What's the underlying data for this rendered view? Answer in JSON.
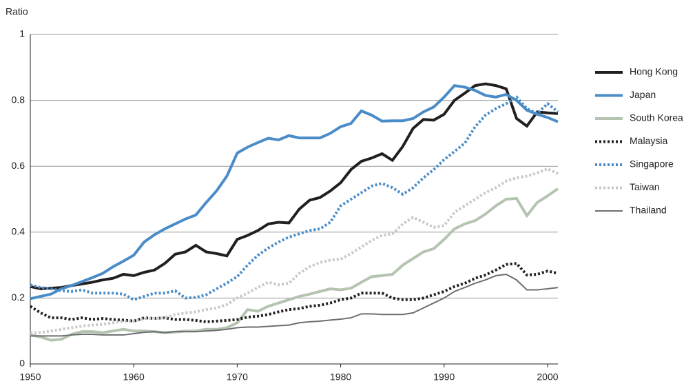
{
  "chart_data": {
    "type": "line",
    "y_label": "Ratio",
    "x": [
      1950,
      1951,
      1952,
      1953,
      1954,
      1955,
      1956,
      1957,
      1958,
      1959,
      1960,
      1961,
      1962,
      1963,
      1964,
      1965,
      1966,
      1967,
      1968,
      1969,
      1970,
      1971,
      1972,
      1973,
      1974,
      1975,
      1976,
      1977,
      1978,
      1979,
      1980,
      1981,
      1982,
      1983,
      1984,
      1985,
      1986,
      1987,
      1988,
      1989,
      1990,
      1991,
      1992,
      1993,
      1994,
      1995,
      1996,
      1997,
      1998,
      1999,
      2000,
      2001
    ],
    "xlim": [
      1950,
      2001
    ],
    "xticks": [
      1950,
      1960,
      1970,
      1980,
      1990,
      2000
    ],
    "ylim": [
      0,
      1
    ],
    "yticks": [
      0,
      0.2,
      0.4,
      0.6,
      0.8,
      1
    ],
    "grid": true,
    "series": [
      {
        "name": "Hong Kong",
        "color": "#231f20",
        "line_style": "solid",
        "values": [
          0.235,
          0.228,
          0.23,
          0.232,
          0.238,
          0.243,
          0.248,
          0.255,
          0.26,
          0.272,
          0.268,
          0.278,
          0.285,
          0.305,
          0.333,
          0.34,
          0.36,
          0.34,
          0.335,
          0.328,
          0.378,
          0.39,
          0.405,
          0.425,
          0.43,
          0.428,
          0.47,
          0.497,
          0.505,
          0.525,
          0.55,
          0.59,
          0.615,
          0.625,
          0.638,
          0.618,
          0.66,
          0.715,
          0.742,
          0.74,
          0.758,
          0.8,
          0.822,
          0.845,
          0.85,
          0.845,
          0.835,
          0.745,
          0.722,
          0.765,
          0.762,
          0.76
        ]
      },
      {
        "name": "Japan",
        "color": "#4a8cc8",
        "line_style": "solid",
        "values": [
          0.198,
          0.205,
          0.212,
          0.228,
          0.238,
          0.25,
          0.262,
          0.275,
          0.295,
          0.312,
          0.33,
          0.37,
          0.392,
          0.41,
          0.425,
          0.44,
          0.452,
          0.49,
          0.525,
          0.57,
          0.64,
          0.658,
          0.672,
          0.685,
          0.68,
          0.693,
          0.686,
          0.686,
          0.686,
          0.7,
          0.72,
          0.73,
          0.768,
          0.755,
          0.737,
          0.738,
          0.738,
          0.745,
          0.765,
          0.78,
          0.81,
          0.845,
          0.84,
          0.83,
          0.815,
          0.81,
          0.818,
          0.8,
          0.77,
          0.758,
          0.748,
          0.735
        ]
      },
      {
        "name": "South Korea",
        "color": "#b5c4b1",
        "line_style": "solid",
        "values": [
          0.088,
          0.082,
          0.072,
          0.075,
          0.09,
          0.098,
          0.098,
          0.095,
          0.1,
          0.105,
          0.1,
          0.1,
          0.098,
          0.095,
          0.097,
          0.1,
          0.1,
          0.105,
          0.105,
          0.11,
          0.125,
          0.165,
          0.16,
          0.175,
          0.185,
          0.195,
          0.205,
          0.212,
          0.22,
          0.228,
          0.225,
          0.23,
          0.248,
          0.265,
          0.268,
          0.272,
          0.3,
          0.32,
          0.34,
          0.35,
          0.378,
          0.41,
          0.425,
          0.435,
          0.455,
          0.48,
          0.5,
          0.502,
          0.45,
          0.49,
          0.51,
          0.532
        ]
      },
      {
        "name": "Malaysia",
        "color": "#231f20",
        "line_style": "dotted",
        "values": [
          0.175,
          0.155,
          0.14,
          0.14,
          0.135,
          0.14,
          0.135,
          0.138,
          0.135,
          0.133,
          0.13,
          0.14,
          0.138,
          0.14,
          0.135,
          0.135,
          0.132,
          0.128,
          0.13,
          0.132,
          0.135,
          0.142,
          0.145,
          0.15,
          0.158,
          0.165,
          0.168,
          0.175,
          0.178,
          0.185,
          0.195,
          0.2,
          0.215,
          0.215,
          0.215,
          0.2,
          0.195,
          0.195,
          0.2,
          0.21,
          0.22,
          0.235,
          0.245,
          0.26,
          0.27,
          0.285,
          0.302,
          0.305,
          0.27,
          0.272,
          0.282,
          0.275
        ]
      },
      {
        "name": "Singapore",
        "color": "#4a8cc8",
        "line_style": "dotted",
        "values": [
          0.24,
          0.232,
          0.228,
          0.222,
          0.22,
          0.225,
          0.215,
          0.215,
          0.215,
          0.212,
          0.195,
          0.205,
          0.215,
          0.215,
          0.222,
          0.2,
          0.202,
          0.21,
          0.228,
          0.245,
          0.265,
          0.3,
          0.33,
          0.352,
          0.37,
          0.385,
          0.395,
          0.405,
          0.41,
          0.43,
          0.48,
          0.5,
          0.52,
          0.54,
          0.548,
          0.535,
          0.515,
          0.535,
          0.565,
          0.59,
          0.62,
          0.645,
          0.67,
          0.72,
          0.755,
          0.775,
          0.79,
          0.81,
          0.775,
          0.76,
          0.79,
          0.765
        ]
      },
      {
        "name": "Taiwan",
        "color": "#c8c8c8",
        "line_style": "dotted",
        "values": [
          0.095,
          0.095,
          0.1,
          0.105,
          0.11,
          0.115,
          0.118,
          0.12,
          0.125,
          0.13,
          0.13,
          0.138,
          0.138,
          0.14,
          0.15,
          0.155,
          0.158,
          0.165,
          0.17,
          0.18,
          0.2,
          0.215,
          0.232,
          0.248,
          0.24,
          0.245,
          0.275,
          0.295,
          0.308,
          0.315,
          0.318,
          0.335,
          0.355,
          0.375,
          0.39,
          0.395,
          0.425,
          0.445,
          0.43,
          0.415,
          0.42,
          0.46,
          0.48,
          0.5,
          0.52,
          0.535,
          0.555,
          0.565,
          0.57,
          0.58,
          0.592,
          0.578
        ]
      },
      {
        "name": "Thailand",
        "color": "#6d6e71",
        "line_style": "thin",
        "values": [
          0.085,
          0.085,
          0.085,
          0.085,
          0.088,
          0.09,
          0.09,
          0.088,
          0.088,
          0.088,
          0.092,
          0.096,
          0.098,
          0.095,
          0.098,
          0.098,
          0.098,
          0.1,
          0.102,
          0.105,
          0.11,
          0.112,
          0.112,
          0.114,
          0.116,
          0.118,
          0.125,
          0.128,
          0.13,
          0.133,
          0.136,
          0.14,
          0.152,
          0.152,
          0.15,
          0.15,
          0.15,
          0.155,
          0.17,
          0.185,
          0.2,
          0.22,
          0.232,
          0.245,
          0.255,
          0.268,
          0.272,
          0.255,
          0.225,
          0.225,
          0.228,
          0.232
        ]
      }
    ]
  }
}
